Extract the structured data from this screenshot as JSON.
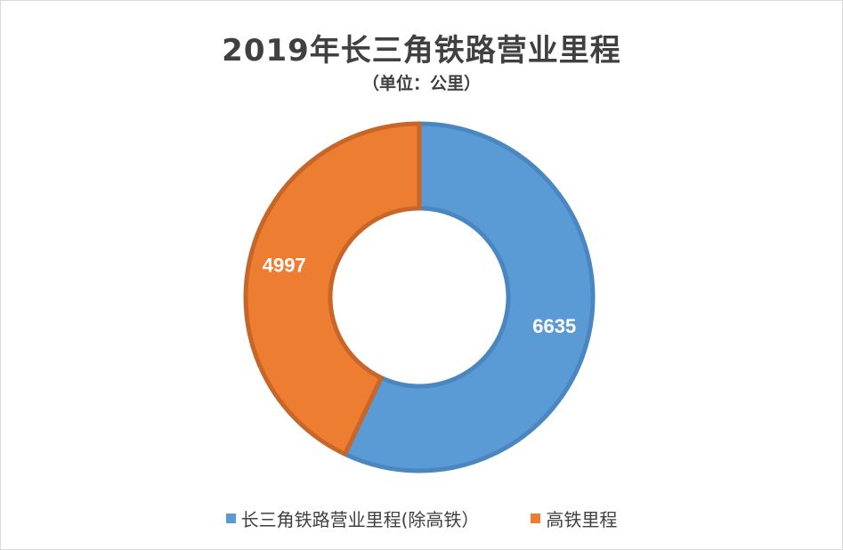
{
  "chart_data": {
    "type": "pie",
    "title": "2019年长三角铁路营业里程",
    "subtitle": "（单位：公里）",
    "donut": true,
    "series": [
      {
        "name": "长三角铁路营业里程(除高铁）",
        "value": 6635,
        "label": "6635",
        "color": "#5b9bd5",
        "edge": "#4a86c0"
      },
      {
        "name": "高铁里程",
        "value": 4997,
        "label": "4997",
        "color": "#ed7d31",
        "edge": "#c8662a"
      }
    ],
    "legend_position": "bottom"
  }
}
